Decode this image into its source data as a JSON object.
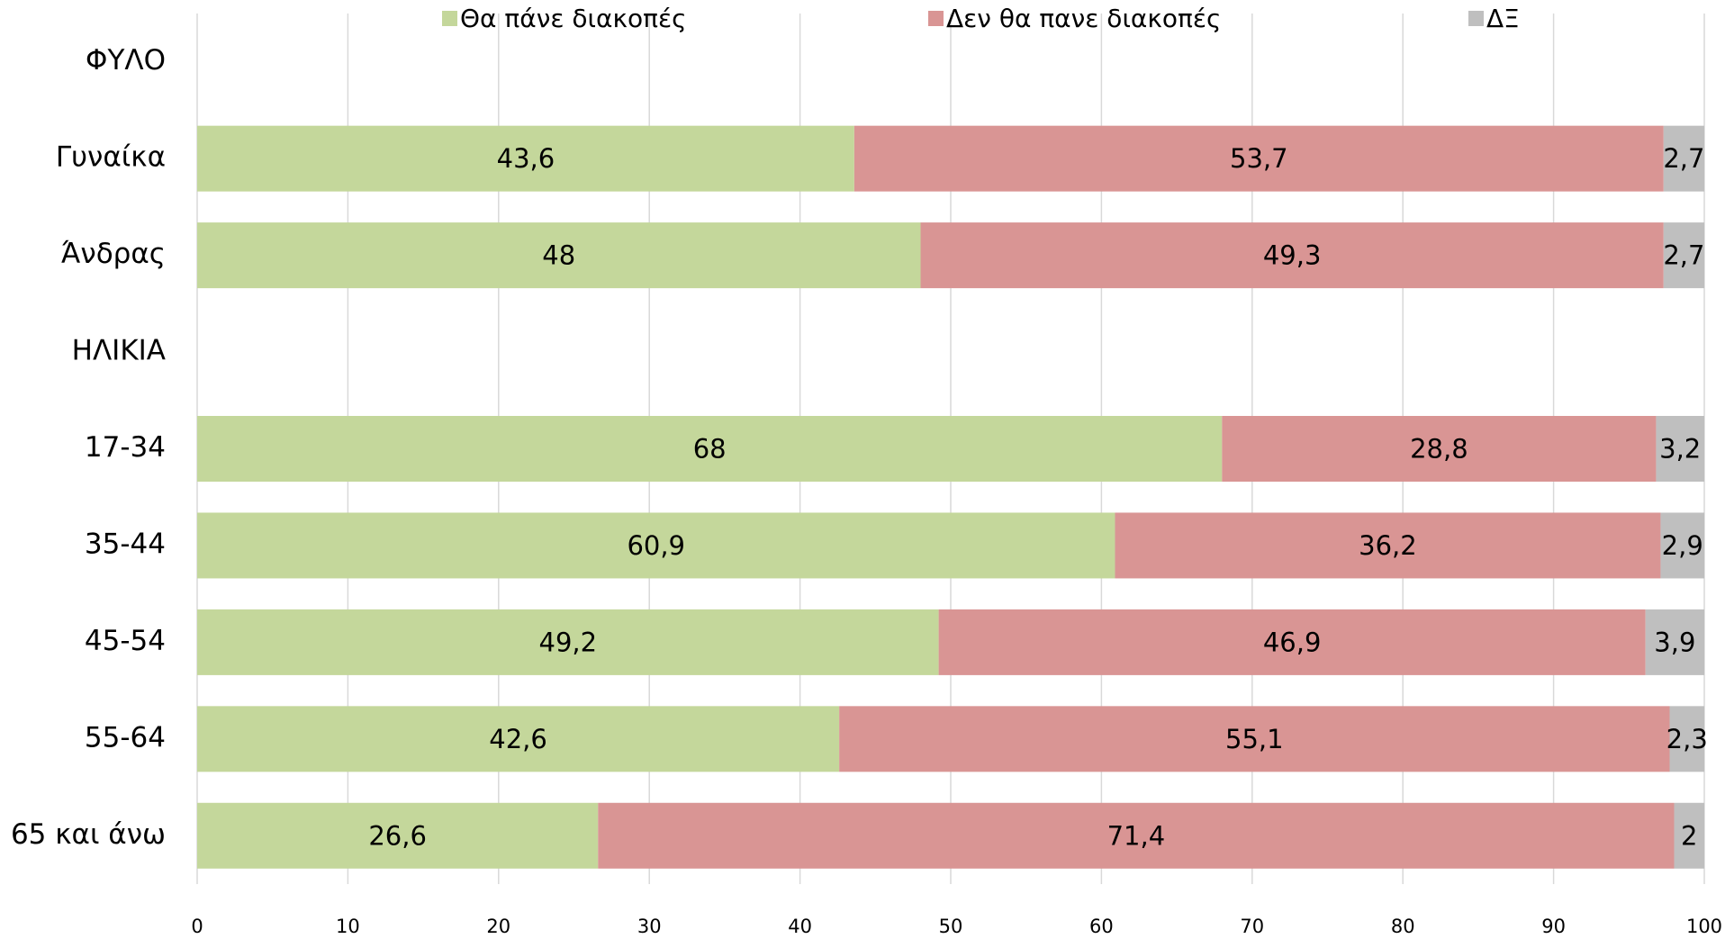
{
  "chart_data": {
    "type": "stacked_bar_horizontal",
    "categories": [
      "ΦΥΛΟ",
      "Γυναίκα",
      "Άνδρας",
      "ΗΛΙΚΙΑ",
      "17-34",
      "35-44",
      "45-54",
      "55-64",
      "65 και άνω"
    ],
    "series": [
      {
        "name": "Θα πάνε διακοπές",
        "color": "#c4d79b",
        "values": [
          null,
          43.6,
          48,
          null,
          68,
          60.9,
          49.2,
          42.6,
          26.6
        ],
        "value_labels": [
          null,
          "43,6",
          "48",
          null,
          "68",
          "60,9",
          "49,2",
          "42,6",
          "26,6"
        ]
      },
      {
        "name": "Δεν θα πανε διακοπές",
        "color": "#d99594",
        "values": [
          null,
          53.7,
          49.3,
          null,
          28.8,
          36.2,
          46.9,
          55.1,
          71.4
        ],
        "value_labels": [
          null,
          "53,7",
          "49,3",
          null,
          "28,8",
          "36,2",
          "46,9",
          "55,1",
          "71,4"
        ]
      },
      {
        "name": "ΔΞ",
        "color": "#bfbfbf",
        "values": [
          null,
          2.7,
          2.7,
          null,
          3.2,
          2.9,
          3.9,
          2.3,
          2
        ],
        "value_labels": [
          null,
          "2,7",
          "2,7",
          null,
          "3,2",
          "2,9",
          "3,9",
          "2,3",
          "2"
        ]
      }
    ],
    "xlim": [
      0,
      100
    ],
    "xticks": [
      0,
      10,
      20,
      30,
      40,
      50,
      60,
      70,
      80,
      90,
      100
    ],
    "grid": true,
    "legend": "top"
  }
}
